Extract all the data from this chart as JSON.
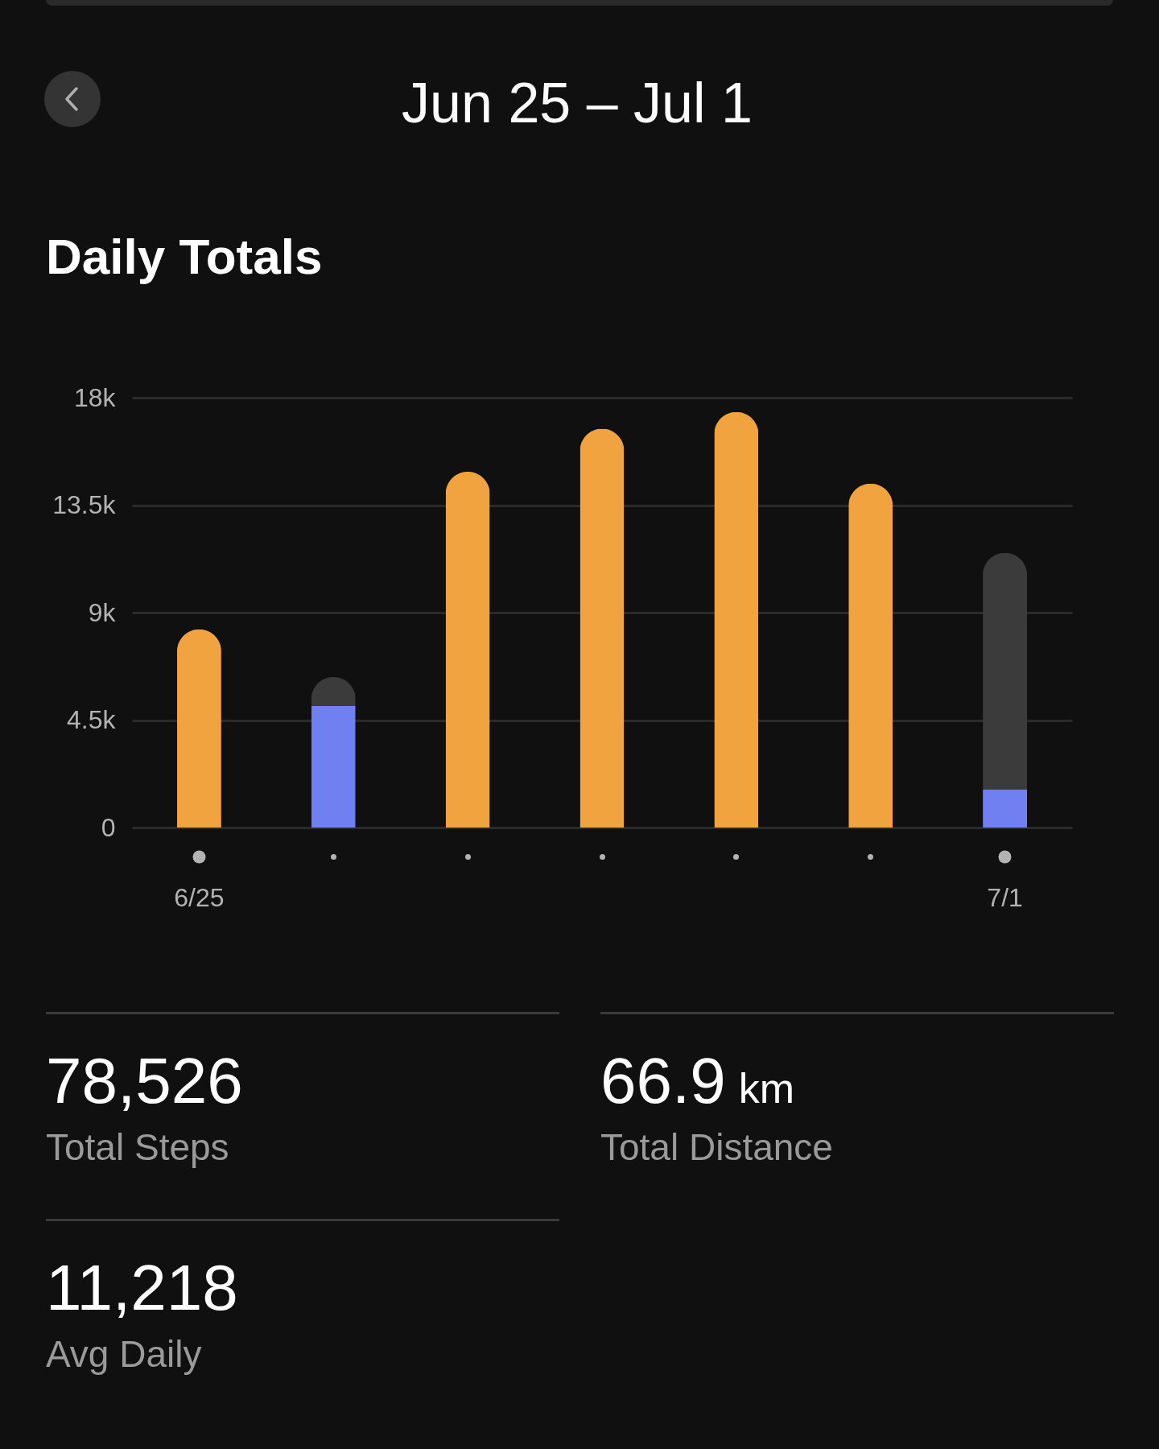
{
  "chart_data": {
    "type": "bar",
    "title": "Daily Totals",
    "subtitle": "Jun 25 – Jul 1",
    "categories": [
      "6/25",
      null,
      null,
      null,
      null,
      null,
      "7/1"
    ],
    "series": [
      {
        "colors": [
          "#f0a33f",
          "#7080f0",
          "#f0a33f",
          "#f0a33f",
          "#f0a33f",
          "#f0a33f",
          "#7080f0"
        ],
        "values": [
          8300,
          5100,
          14900,
          16700,
          17400,
          14400,
          1600
        ]
      },
      {
        "color": "#3b3b3b",
        "values": [
          null,
          1200,
          null,
          null,
          null,
          null,
          9900
        ]
      }
    ],
    "stacked": true,
    "ylim": [
      0,
      18000
    ],
    "yticks": [
      0,
      {
        "value": 4500,
        "label": "4.5k"
      },
      {
        "value": 9000,
        "label": "9k"
      },
      {
        "value": 13500,
        "label": "13.5k"
      },
      {
        "value": 18000,
        "label": "18k"
      }
    ],
    "grid": "y",
    "annotations": [
      "78,526",
      "Total Steps",
      "66.9 km",
      "Total Distance",
      "11,218",
      "Avg Daily"
    ]
  }
}
